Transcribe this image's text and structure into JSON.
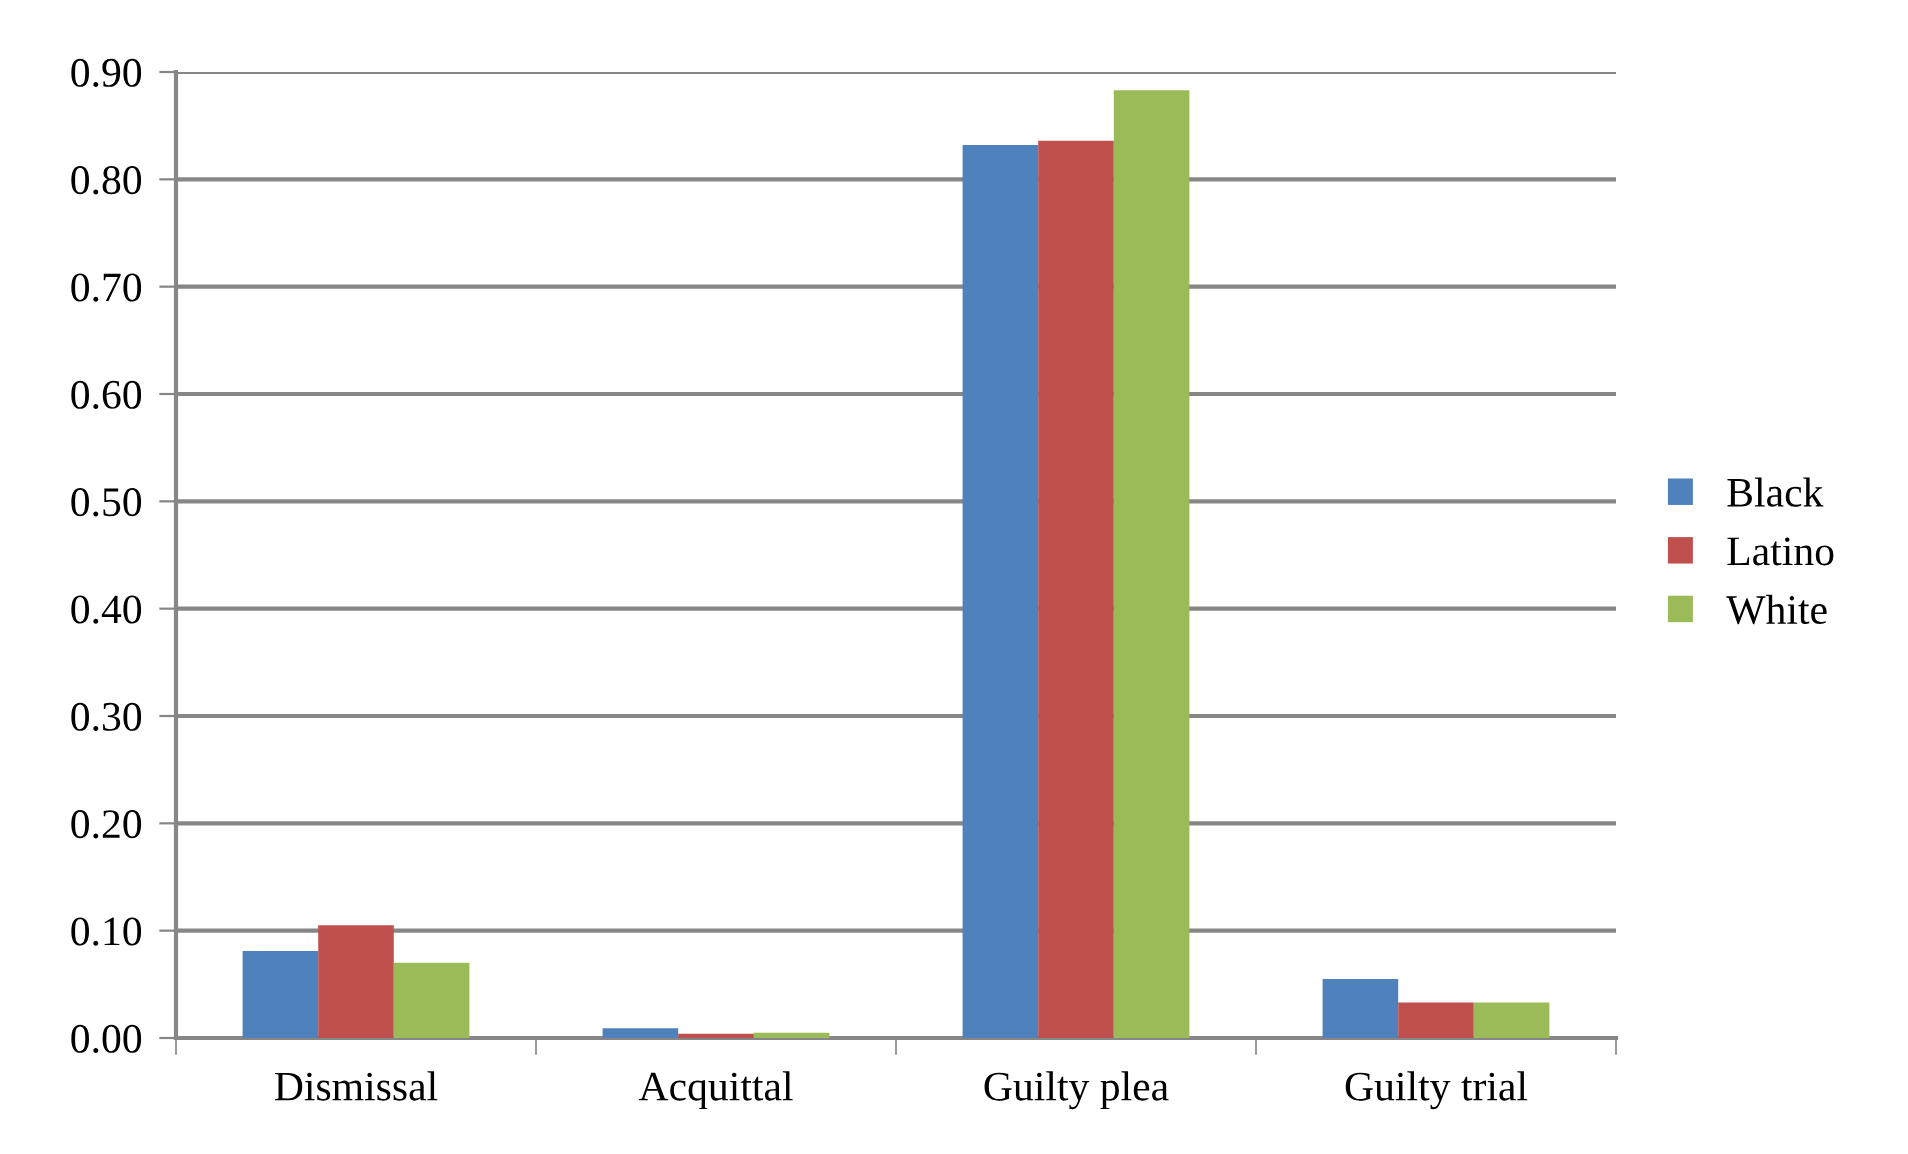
{
  "chart_data": {
    "type": "bar",
    "categories": [
      "Dismissal",
      "Acquittal",
      "Guilty plea",
      "Guilty trial"
    ],
    "series": [
      {
        "name": "Black",
        "color": "#4f81bd",
        "values": [
          0.081,
          0.009,
          0.832,
          0.055
        ]
      },
      {
        "name": "Latino",
        "color": "#c0504d",
        "values": [
          0.105,
          0.004,
          0.836,
          0.033
        ]
      },
      {
        "name": "White",
        "color": "#9bbb59",
        "values": [
          0.07,
          0.005,
          0.883,
          0.033
        ]
      }
    ],
    "ylim": [
      0,
      0.9
    ],
    "yticks": [
      {
        "value": 0,
        "label": "0.00"
      },
      {
        "value": 0.1,
        "label": "0.10"
      },
      {
        "value": 0.2,
        "label": "0.20"
      },
      {
        "value": 0.3,
        "label": "0.30"
      },
      {
        "value": 0.4,
        "label": "0.40"
      },
      {
        "value": 0.5,
        "label": "0.50"
      },
      {
        "value": 0.6,
        "label": "0.60"
      },
      {
        "value": 0.7,
        "label": "0.70"
      },
      {
        "value": 0.8,
        "label": "0.80"
      },
      {
        "value": 0.9,
        "label": "0.90"
      }
    ],
    "grid": "y",
    "legend": "right"
  }
}
